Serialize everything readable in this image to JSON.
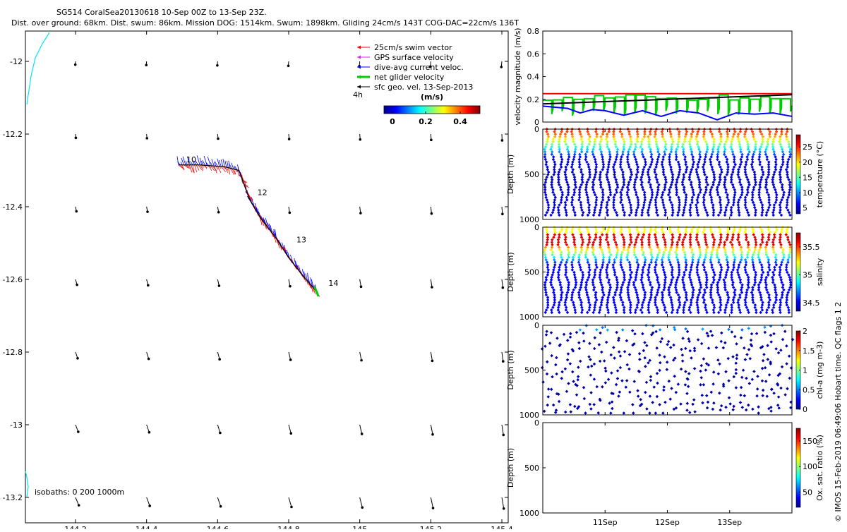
{
  "title": {
    "line1": "SG514 CoralSea20130618 10-Sep 00Z to 13-Sep 23Z.",
    "line2": "Dist. over ground: 68km. Dist. swum: 86km. Mission DOG: 1514km. Swum: 1898km. Gliding 24cm/s 143T COG-DAC=22cm/s 136T"
  },
  "side_label": "© IMOS 15-Feb-2019 06:49:06 Hobart time. QC flags 1 2",
  "map": {
    "legend": [
      {
        "label": "25cm/s swim vector",
        "color": "#ff0000"
      },
      {
        "label": "GPS surface velocity",
        "color": "#cc33cc"
      },
      {
        "label": "dive-avg current veloc.",
        "color": "#0000ff"
      },
      {
        "label": "net glider velocity",
        "color": "#00cc00"
      },
      {
        "label": "sfc geo. vel. 13-Sep-2013",
        "color": "#000000"
      }
    ],
    "time_step_label": "4h",
    "colorbar_label": "(m/s)",
    "colorbar_ticks": [
      "0",
      "0.2",
      "0.4"
    ],
    "isobaths_label": "isobaths: 0    200  1000m",
    "day_labels": [
      "10",
      "12",
      "13",
      "14"
    ],
    "colors": {
      "track_swim": "#ff0000",
      "track_current": "#0000ff",
      "end": "#00cc00",
      "coast": "#00e5ff"
    }
  },
  "chart_data": [
    {
      "type": "scatter",
      "name": "glider track map",
      "xlabel": "",
      "ylabel": "",
      "xlim": [
        144.05,
        145.42
      ],
      "ylim": [
        -13.25,
        -11.9
      ],
      "xticks": [
        "144.2",
        "144.4",
        "144.6",
        "144.8",
        "145",
        "145.2",
        "145.4"
      ],
      "yticks": [
        "-12",
        "-12.2",
        "-12.4",
        "-12.6",
        "-12.8",
        "-13",
        "-13.2"
      ],
      "track": {
        "lon": [
          144.49,
          144.55,
          144.62,
          144.66,
          144.69,
          144.72,
          144.76,
          144.8,
          144.84,
          144.88
        ],
        "lat": [
          -12.285,
          -12.285,
          -12.29,
          -12.3,
          -12.38,
          -12.43,
          -12.48,
          -12.54,
          -12.59,
          -12.635
        ]
      },
      "day_marks": [
        {
          "label": "10",
          "lon": 144.5,
          "lat": -12.27
        },
        {
          "label": "12",
          "lon": 144.7,
          "lat": -12.36
        },
        {
          "label": "13",
          "lon": 144.81,
          "lat": -12.49
        },
        {
          "label": "14",
          "lon": 144.9,
          "lat": -12.61
        }
      ],
      "geo_vel_grid": {
        "lon": [
          144.2,
          144.4,
          144.6,
          144.8,
          145.0,
          145.2,
          145.4
        ],
        "lat": [
          -12.0,
          -12.2,
          -12.4,
          -12.6,
          -12.8,
          -13.0,
          -13.2
        ]
      }
    },
    {
      "type": "line",
      "name": "velocity magnitude",
      "xlabel": "",
      "ylabel": "velocity magnitude (m/s)",
      "xlim": [
        10.0,
        14.0
      ],
      "ylim": [
        0,
        0.8
      ],
      "yticks": [
        "0",
        "0.2",
        "0.4",
        "0.6",
        "0.8"
      ],
      "series": [
        {
          "color": "#ff0000",
          "x": [
            10.0,
            14.0
          ],
          "values": [
            0.25,
            0.25
          ]
        },
        {
          "color": "#000000",
          "x": [
            10.0,
            14.0
          ],
          "values": [
            0.16,
            0.24
          ]
        },
        {
          "color": "#0000ff",
          "x": [
            10.0,
            10.2,
            10.4,
            10.6,
            10.8,
            11.0,
            11.3,
            11.6,
            11.9,
            12.2,
            12.5,
            12.8,
            13.1,
            13.4,
            13.7,
            14.0
          ],
          "values": [
            0.14,
            0.13,
            0.12,
            0.08,
            0.11,
            0.1,
            0.06,
            0.1,
            0.05,
            0.1,
            0.08,
            0.02,
            0.08,
            0.07,
            0.08,
            0.05
          ]
        },
        {
          "color": "#00cc00",
          "x": [
            10.0,
            10.2,
            10.4,
            10.6,
            10.8,
            11.0,
            11.3,
            11.6,
            11.9,
            12.2,
            12.5,
            12.8,
            13.1,
            13.4,
            13.7,
            14.0
          ],
          "values": [
            0.14,
            0.2,
            0.21,
            0.22,
            0.2,
            0.19,
            0.19,
            0.17,
            0.2,
            0.21,
            0.2,
            0.21,
            0.2,
            0.21,
            0.2,
            0.2
          ]
        }
      ]
    },
    {
      "type": "scatter",
      "name": "temperature section",
      "xlabel": "",
      "ylabel": "Depth (m)",
      "yticks": [
        "0",
        "500",
        "1000"
      ],
      "ylim": [
        1000,
        0
      ],
      "colorbar": {
        "label": "temperature (°C)",
        "ticks": [
          "5",
          "10",
          "15",
          "20",
          "25"
        ],
        "range": [
          3,
          29
        ]
      },
      "x_range": [
        10.0,
        14.0
      ],
      "dives": 36
    },
    {
      "type": "scatter",
      "name": "salinity section",
      "xlabel": "",
      "ylabel": "Depth (m)",
      "yticks": [
        "0",
        "500",
        "1000"
      ],
      "ylim": [
        1000,
        0
      ],
      "colorbar": {
        "label": "salinity",
        "ticks": [
          "34.5",
          "35",
          "35.5"
        ],
        "range": [
          34.35,
          35.75
        ]
      },
      "x_range": [
        10.0,
        14.0
      ],
      "dives": 36
    },
    {
      "type": "scatter",
      "name": "chlorophyll section",
      "xlabel": "",
      "ylabel": "Depth (m)",
      "yticks": [
        "0",
        "500",
        "1000"
      ],
      "ylim": [
        1000,
        0
      ],
      "colorbar": {
        "label": "chl-a (mg m-3)",
        "ticks": [
          "0",
          "0.5",
          "1",
          "1.5",
          "2"
        ],
        "range": [
          0,
          2
        ]
      },
      "x_range": [
        10.0,
        14.0
      ]
    },
    {
      "type": "scatter",
      "name": "oxygen section",
      "xlabel": "",
      "ylabel": "Depth (m)",
      "yticks": [
        "0",
        "500",
        "1000"
      ],
      "ylim": [
        1000,
        0
      ],
      "xticks": [
        "11Sep",
        "12Sep",
        "13Sep"
      ],
      "colorbar": {
        "label": "Ox. sat. ratio (%)",
        "ticks": [
          "50",
          "100",
          "150"
        ],
        "range": [
          20,
          175
        ]
      },
      "x_range": [
        10.0,
        14.0
      ]
    }
  ]
}
